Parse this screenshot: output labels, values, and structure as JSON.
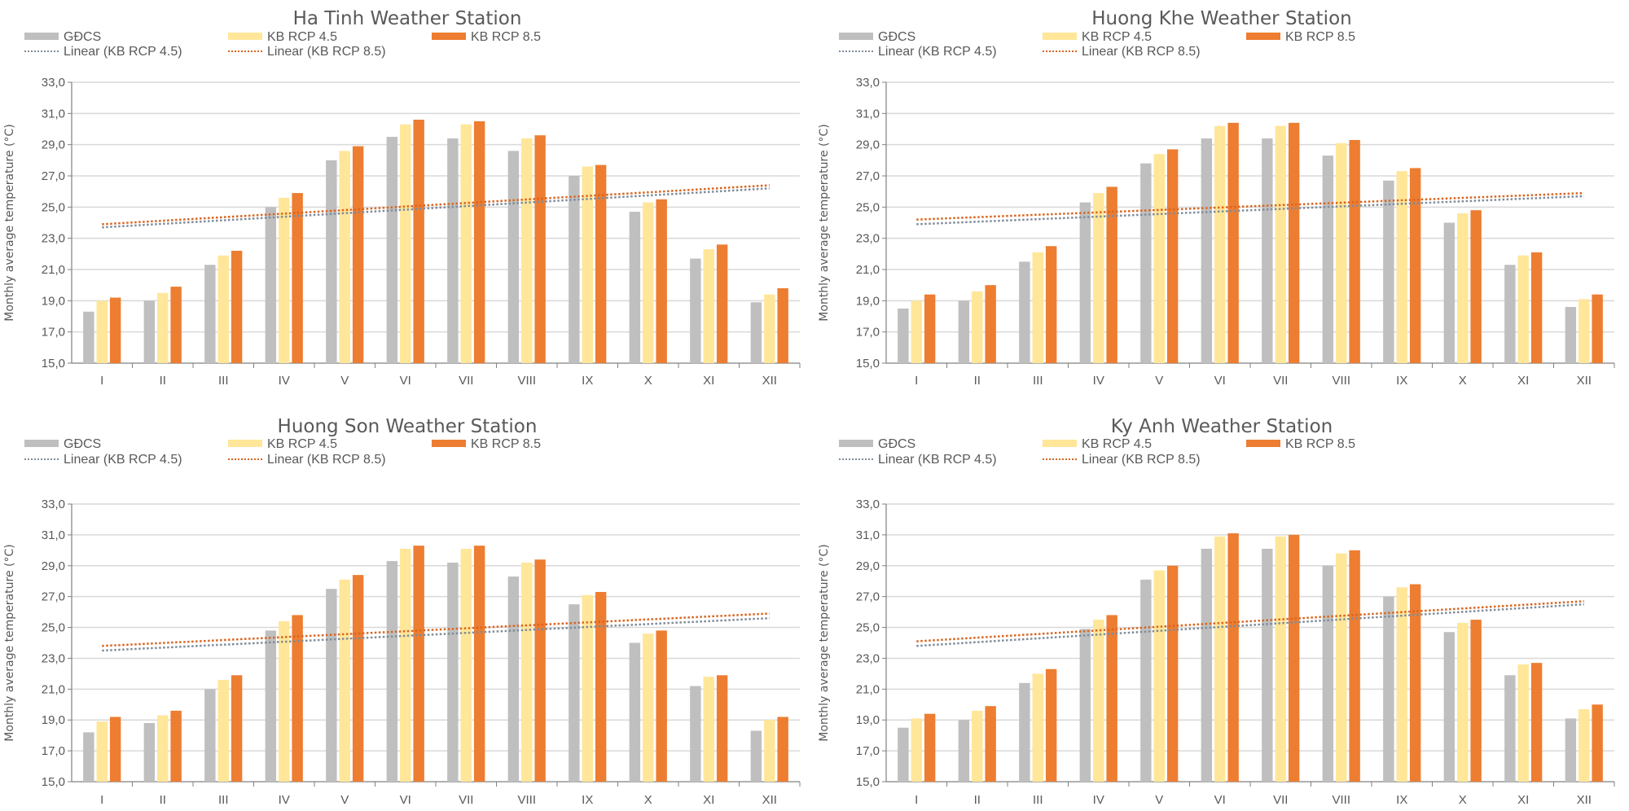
{
  "colors": {
    "gdcs": "#bfbfbf",
    "rcp45": "#ffe699",
    "rcp85": "#ed7d31",
    "trend45": "#7f8c9a",
    "trend85": "#d9651f",
    "grid": "#d9d9d9",
    "axis": "#808080",
    "text": "#595959"
  },
  "chart_data": [
    {
      "type": "bar",
      "title": "Ha Tinh Weather Station",
      "xlabel": "",
      "ylabel": "Monthly average temperature  (°C)",
      "ylim": [
        15,
        33
      ],
      "yticks": [
        "15,0",
        "17,0",
        "19,0",
        "21,0",
        "23,0",
        "25,0",
        "27,0",
        "29,0",
        "31,0",
        "33,0"
      ],
      "grid": true,
      "legend_position": "top",
      "categories": [
        "I",
        "II",
        "III",
        "IV",
        "V",
        "VI",
        "VII",
        "VIII",
        "IX",
        "X",
        "XI",
        "XII"
      ],
      "series": [
        {
          "name": "GĐCS",
          "values": [
            18.3,
            19.0,
            21.3,
            25.0,
            28.0,
            29.5,
            29.4,
            28.6,
            27.0,
            24.7,
            21.7,
            18.9
          ]
        },
        {
          "name": "KB RCP 4.5",
          "values": [
            19.0,
            19.5,
            21.9,
            25.6,
            28.6,
            30.3,
            30.3,
            29.4,
            27.6,
            25.3,
            22.3,
            19.4
          ]
        },
        {
          "name": "KB RCP 8.5",
          "values": [
            19.2,
            19.9,
            22.2,
            25.9,
            28.9,
            30.6,
            30.5,
            29.6,
            27.7,
            25.5,
            22.6,
            19.8
          ]
        }
      ],
      "trendlines": [
        {
          "name": "Linear (KB RCP 4.5)",
          "start": 23.7,
          "end": 26.2
        },
        {
          "name": "Linear (KB RCP 8.5)",
          "start": 23.9,
          "end": 26.4
        }
      ]
    },
    {
      "type": "bar",
      "title": "Huong Khe Weather Station",
      "xlabel": "",
      "ylabel": "Monthly average temperature  (°C)",
      "ylim": [
        15,
        33
      ],
      "yticks": [
        "15,0",
        "17,0",
        "19,0",
        "21,0",
        "23,0",
        "25,0",
        "27,0",
        "29,0",
        "31,0",
        "33,0"
      ],
      "grid": true,
      "legend_position": "top",
      "categories": [
        "I",
        "II",
        "III",
        "IV",
        "V",
        "VI",
        "VII",
        "VIII",
        "IX",
        "X",
        "XI",
        "XII"
      ],
      "series": [
        {
          "name": "GĐCS",
          "values": [
            18.5,
            19.0,
            21.5,
            25.3,
            27.8,
            29.4,
            29.4,
            28.3,
            26.7,
            24.0,
            21.3,
            18.6
          ]
        },
        {
          "name": "KB RCP 4.5",
          "values": [
            19.0,
            19.6,
            22.1,
            25.9,
            28.4,
            30.2,
            30.2,
            29.1,
            27.3,
            24.6,
            21.9,
            19.1
          ]
        },
        {
          "name": "KB RCP 8.5",
          "values": [
            19.4,
            20.0,
            22.5,
            26.3,
            28.7,
            30.4,
            30.4,
            29.3,
            27.5,
            24.8,
            22.1,
            19.4
          ]
        }
      ],
      "trendlines": [
        {
          "name": "Linear (KB RCP 4.5)",
          "start": 23.9,
          "end": 25.7
        },
        {
          "name": "Linear (KB RCP 8.5)",
          "start": 24.2,
          "end": 25.9
        }
      ]
    },
    {
      "type": "bar",
      "title": "Huong Son Weather Station",
      "xlabel": "",
      "ylabel": "Monthly average temperature  (°C)",
      "ylim": [
        15,
        33
      ],
      "yticks": [
        "15,0",
        "17,0",
        "19,0",
        "21,0",
        "23,0",
        "25,0",
        "27,0",
        "29,0",
        "31,0",
        "33,0"
      ],
      "grid": true,
      "legend_position": "top",
      "categories": [
        "I",
        "II",
        "III",
        "IV",
        "V",
        "VI",
        "VII",
        "VIII",
        "IX",
        "X",
        "XI",
        "XII"
      ],
      "series": [
        {
          "name": "GĐCS",
          "values": [
            18.2,
            18.8,
            21.0,
            24.8,
            27.5,
            29.3,
            29.2,
            28.3,
            26.5,
            24.0,
            21.2,
            18.3
          ]
        },
        {
          "name": "KB RCP 4.5",
          "values": [
            18.9,
            19.3,
            21.6,
            25.4,
            28.1,
            30.1,
            30.1,
            29.2,
            27.1,
            24.6,
            21.8,
            19.0
          ]
        },
        {
          "name": "KB RCP 8.5",
          "values": [
            19.2,
            19.6,
            21.9,
            25.8,
            28.4,
            30.3,
            30.3,
            29.4,
            27.3,
            24.8,
            21.9,
            19.2
          ]
        }
      ],
      "trendlines": [
        {
          "name": "Linear (KB RCP 4.5)",
          "start": 23.5,
          "end": 25.6
        },
        {
          "name": "Linear (KB RCP 8.5)",
          "start": 23.8,
          "end": 25.9
        }
      ]
    },
    {
      "type": "bar",
      "title": "Ky Anh Weather Station",
      "xlabel": "",
      "ylabel": "Monthly average temperature  (°C)",
      "ylim": [
        15,
        33
      ],
      "yticks": [
        "15,0",
        "17,0",
        "19,0",
        "21,0",
        "23,0",
        "25,0",
        "27,0",
        "29,0",
        "31,0",
        "33,0"
      ],
      "grid": true,
      "legend_position": "top",
      "categories": [
        "I",
        "II",
        "III",
        "IV",
        "V",
        "VI",
        "VII",
        "VIII",
        "IX",
        "X",
        "XI",
        "XII"
      ],
      "series": [
        {
          "name": "GĐCS",
          "values": [
            18.5,
            19.0,
            21.4,
            24.9,
            28.1,
            30.1,
            30.1,
            29.0,
            27.0,
            24.7,
            21.9,
            19.1
          ]
        },
        {
          "name": "KB RCP 4.5",
          "values": [
            19.1,
            19.6,
            22.0,
            25.5,
            28.7,
            30.9,
            30.9,
            29.8,
            27.6,
            25.3,
            22.6,
            19.7
          ]
        },
        {
          "name": "KB RCP 8.5",
          "values": [
            19.4,
            19.9,
            22.3,
            25.8,
            29.0,
            31.1,
            31.0,
            30.0,
            27.8,
            25.5,
            22.7,
            20.0
          ]
        }
      ],
      "trendlines": [
        {
          "name": "Linear (KB RCP 4.5)",
          "start": 23.8,
          "end": 26.5
        },
        {
          "name": "Linear (KB RCP 8.5)",
          "start": 24.1,
          "end": 26.7
        }
      ]
    }
  ]
}
